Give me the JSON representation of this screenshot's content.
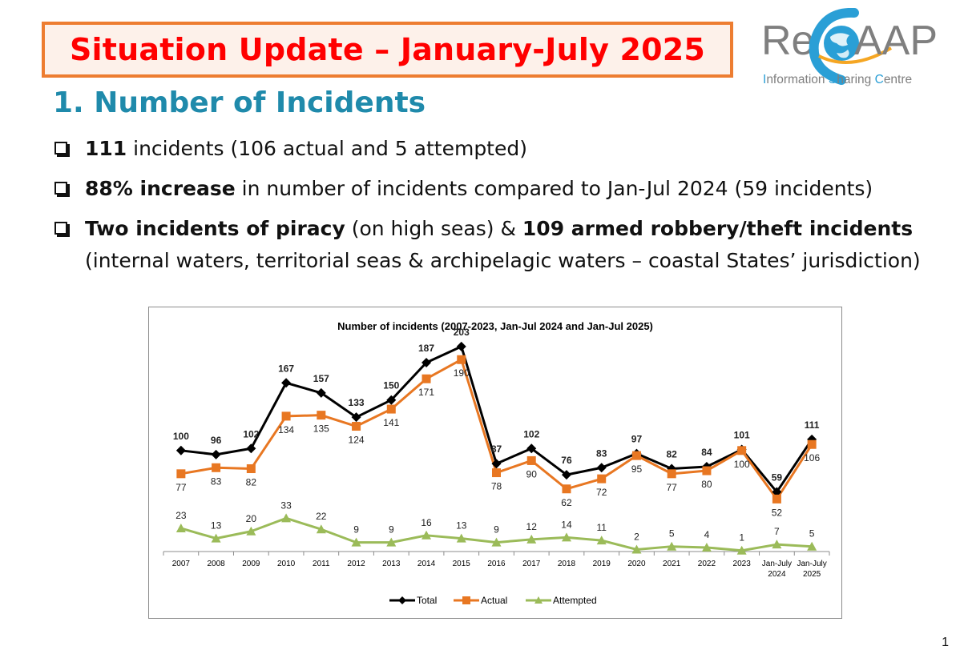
{
  "header": {
    "title": "Situation Update – January-July 2025",
    "logo_text_re": "Re",
    "logo_text_c": "C",
    "logo_text_aap": "AAP",
    "logo_tagline_parts": [
      "I",
      "nformation ",
      "S",
      "haring ",
      "C",
      "entre"
    ]
  },
  "section": {
    "title": "1. Number of Incidents"
  },
  "bullets": [
    {
      "bold": "111",
      "text": " incidents (106 actual and 5 attempted)"
    },
    {
      "bold": "88% increase",
      "text": " in number of incidents compared to Jan-Jul 2024 (59 incidents)"
    },
    {
      "bold": "Two incidents of piracy",
      "text": " (on high seas) & ",
      "bold2": "109 armed robbery/theft incidents",
      "sub": "(internal waters, territorial seas & archipelagic waters – coastal States’ jurisdiction)"
    }
  ],
  "colors": {
    "title_red": "#ff0000",
    "title_border": "#ed7d31",
    "section_blue": "#1f8aab",
    "total": "#000000",
    "actual": "#e87722",
    "attempted": "#9bbb59"
  },
  "chart_data": {
    "type": "line",
    "title": "Number of incidents (2007-2023,  Jan-Jul 2024 and Jan-Jul 2025)",
    "categories": [
      "2007",
      "2008",
      "2009",
      "2010",
      "2011",
      "2012",
      "2013",
      "2014",
      "2015",
      "2016",
      "2017",
      "2018",
      "2019",
      "2020",
      "2021",
      "2022",
      "2023",
      "Jan-July 2024",
      "Jan-July 2025"
    ],
    "series": [
      {
        "name": "Total",
        "values": [
          100,
          96,
          102,
          167,
          157,
          133,
          150,
          187,
          203,
          87,
          102,
          76,
          83,
          97,
          82,
          84,
          101,
          59,
          111
        ]
      },
      {
        "name": "Actual",
        "values": [
          77,
          83,
          82,
          134,
          135,
          124,
          141,
          171,
          190,
          78,
          90,
          62,
          72,
          95,
          77,
          80,
          100,
          52,
          106
        ]
      },
      {
        "name": "Attempted",
        "values": [
          23,
          13,
          20,
          33,
          22,
          9,
          9,
          16,
          13,
          9,
          12,
          14,
          11,
          2,
          5,
          4,
          1,
          7,
          5
        ]
      }
    ],
    "ylim": [
      0,
      210
    ],
    "grid": false,
    "legend": "bottom"
  },
  "page_number": "1"
}
